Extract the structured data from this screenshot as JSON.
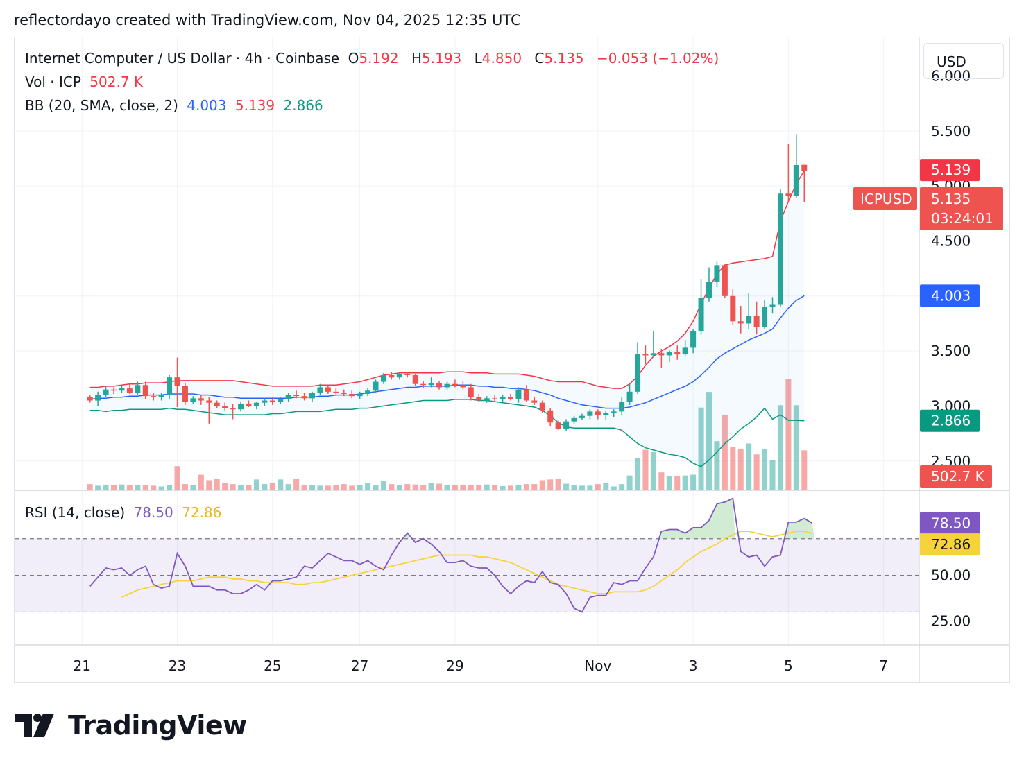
{
  "header": {
    "credit": "reflectordayo created with TradingView.com, Nov 04, 2025 12:35 UTC"
  },
  "legend": {
    "symbol": "Internet Computer / US Dollar · 4h · Coinbase",
    "open_label": "O",
    "open": "5.192",
    "high_label": "H",
    "high": "5.193",
    "low_label": "L",
    "low": "4.850",
    "close_label": "C",
    "close": "5.135",
    "change": "−0.053 (−1.02%)",
    "vol_label": "Vol · ICP",
    "vol_value": "502.7 K",
    "bb_label": "BB (20, SMA, close, 2)",
    "bb_basis": "4.003",
    "bb_upper": "5.139",
    "bb_lower": "2.866",
    "rsi_label": "RSI (14, close)",
    "rsi_value": "78.50",
    "rsi_ma": "72.86"
  },
  "currency_button": "USD",
  "brand": {
    "name": "TradingView"
  },
  "colors": {
    "up": "#26a69a",
    "down": "#ef5350",
    "bb_upper": "#f23645",
    "bb_basis": "#2962ff",
    "bb_lower": "#089981",
    "rsi": "#7e57c2",
    "rsi_ma": "#f7d33b",
    "grid": "#f0f3fa"
  },
  "price_labels": {
    "symbol_tag": "ICPUSD",
    "last_price": "5.135",
    "countdown": "03:24:01",
    "bb_upper": "5.139",
    "bb_basis": "4.003",
    "bb_lower": "2.866",
    "volume": "502.7 K",
    "rsi": "78.50",
    "rsi_ma": "72.86"
  },
  "chart_data": {
    "type": "candlestick",
    "timeframe": "4h",
    "y_ticks": [
      2.5,
      3.0,
      3.5,
      4.0,
      4.5,
      5.0,
      5.5,
      6.0
    ],
    "y_tick_labels": [
      "2.500",
      "3.000",
      "3.500",
      "4.000",
      "4.500",
      "5.000",
      "5.500",
      "6.000"
    ],
    "y_range": [
      2.24,
      6.35
    ],
    "x_tick_labels": [
      "21",
      "23",
      "25",
      "27",
      "29",
      "Nov",
      "3",
      "5",
      "7"
    ],
    "x_tick_index": [
      -1,
      11,
      23,
      34,
      46,
      64,
      76,
      88,
      100
    ],
    "index_range": [
      -9.5,
      104.4
    ],
    "candles": [
      [
        3.08,
        3.1,
        3.03,
        3.05
      ],
      [
        3.05,
        3.13,
        3.0,
        3.1
      ],
      [
        3.1,
        3.18,
        3.08,
        3.15
      ],
      [
        3.15,
        3.17,
        3.11,
        3.14
      ],
      [
        3.14,
        3.19,
        3.12,
        3.16
      ],
      [
        3.16,
        3.2,
        3.11,
        3.12
      ],
      [
        3.12,
        3.22,
        3.1,
        3.19
      ],
      [
        3.19,
        3.22,
        3.06,
        3.09
      ],
      [
        3.09,
        3.12,
        3.05,
        3.08
      ],
      [
        3.08,
        3.12,
        3.05,
        3.1
      ],
      [
        3.1,
        3.28,
        3.06,
        3.26
      ],
      [
        3.26,
        3.44,
        2.99,
        3.18
      ],
      [
        3.18,
        3.21,
        3.01,
        3.04
      ],
      [
        3.04,
        3.09,
        3.02,
        3.07
      ],
      [
        3.07,
        3.1,
        3.01,
        3.05
      ],
      [
        3.05,
        3.08,
        2.84,
        3.03
      ],
      [
        3.03,
        3.05,
        2.98,
        3.0
      ],
      [
        3.0,
        3.03,
        2.96,
        2.98
      ],
      [
        2.98,
        3.02,
        2.88,
        2.97
      ],
      [
        2.97,
        3.04,
        2.95,
        3.02
      ],
      [
        3.02,
        3.05,
        2.99,
        3.0
      ],
      [
        3.0,
        3.04,
        2.97,
        3.03
      ],
      [
        3.03,
        3.07,
        3.0,
        3.05
      ],
      [
        3.05,
        3.08,
        3.01,
        3.04
      ],
      [
        3.04,
        3.08,
        3.02,
        3.06
      ],
      [
        3.06,
        3.12,
        3.04,
        3.1
      ],
      [
        3.1,
        3.14,
        3.07,
        3.09
      ],
      [
        3.09,
        3.12,
        3.05,
        3.07
      ],
      [
        3.07,
        3.13,
        3.04,
        3.12
      ],
      [
        3.12,
        3.2,
        3.1,
        3.17
      ],
      [
        3.17,
        3.19,
        3.11,
        3.13
      ],
      [
        3.13,
        3.16,
        3.1,
        3.12
      ],
      [
        3.12,
        3.15,
        3.09,
        3.11
      ],
      [
        3.11,
        3.14,
        3.07,
        3.09
      ],
      [
        3.09,
        3.13,
        3.06,
        3.11
      ],
      [
        3.11,
        3.16,
        3.09,
        3.14
      ],
      [
        3.14,
        3.24,
        3.12,
        3.22
      ],
      [
        3.22,
        3.3,
        3.2,
        3.28
      ],
      [
        3.28,
        3.31,
        3.24,
        3.26
      ],
      [
        3.26,
        3.31,
        3.24,
        3.29
      ],
      [
        3.29,
        3.31,
        3.26,
        3.28
      ],
      [
        3.28,
        3.29,
        3.18,
        3.2
      ],
      [
        3.2,
        3.23,
        3.16,
        3.19
      ],
      [
        3.19,
        3.26,
        3.17,
        3.21
      ],
      [
        3.21,
        3.23,
        3.15,
        3.17
      ],
      [
        3.17,
        3.22,
        3.15,
        3.2
      ],
      [
        3.2,
        3.24,
        3.17,
        3.19
      ],
      [
        3.19,
        3.23,
        3.15,
        3.17
      ],
      [
        3.17,
        3.2,
        3.05,
        3.08
      ],
      [
        3.08,
        3.11,
        3.04,
        3.05
      ],
      [
        3.05,
        3.09,
        3.03,
        3.07
      ],
      [
        3.07,
        3.1,
        3.04,
        3.06
      ],
      [
        3.06,
        3.1,
        3.03,
        3.08
      ],
      [
        3.08,
        3.11,
        3.05,
        3.06
      ],
      [
        3.06,
        3.17,
        3.03,
        3.15
      ],
      [
        3.15,
        3.19,
        3.04,
        3.05
      ],
      [
        3.05,
        3.08,
        3.01,
        3.03
      ],
      [
        3.03,
        3.05,
        2.94,
        2.96
      ],
      [
        2.96,
        2.98,
        2.82,
        2.85
      ],
      [
        2.85,
        2.87,
        2.78,
        2.79
      ],
      [
        2.79,
        2.88,
        2.77,
        2.86
      ],
      [
        2.86,
        2.91,
        2.84,
        2.89
      ],
      [
        2.89,
        2.93,
        2.87,
        2.91
      ],
      [
        2.91,
        2.97,
        2.88,
        2.95
      ],
      [
        2.95,
        2.97,
        2.88,
        2.92
      ],
      [
        2.92,
        2.96,
        2.87,
        2.94
      ],
      [
        2.94,
        2.97,
        2.9,
        2.95
      ],
      [
        2.95,
        3.08,
        2.92,
        3.04
      ],
      [
        3.04,
        3.2,
        3.01,
        3.13
      ],
      [
        3.13,
        3.58,
        3.11,
        3.47
      ],
      [
        3.47,
        3.55,
        3.38,
        3.46
      ],
      [
        3.46,
        3.68,
        3.44,
        3.48
      ],
      [
        3.48,
        3.52,
        3.35,
        3.46
      ],
      [
        3.46,
        3.51,
        3.4,
        3.49
      ],
      [
        3.49,
        3.55,
        3.42,
        3.47
      ],
      [
        3.47,
        3.6,
        3.45,
        3.53
      ],
      [
        3.53,
        3.7,
        3.48,
        3.68
      ],
      [
        3.68,
        4.15,
        3.65,
        3.98
      ],
      [
        3.98,
        4.26,
        3.95,
        4.13
      ],
      [
        4.13,
        4.31,
        4.08,
        4.28
      ],
      [
        4.28,
        4.29,
        3.98,
        4.0
      ],
      [
        4.0,
        4.06,
        3.74,
        3.77
      ],
      [
        3.77,
        3.91,
        3.66,
        3.75
      ],
      [
        3.75,
        4.03,
        3.7,
        3.82
      ],
      [
        3.82,
        3.95,
        3.65,
        3.72
      ],
      [
        3.72,
        3.96,
        3.7,
        3.9
      ],
      [
        3.9,
        3.99,
        3.84,
        3.92
      ],
      [
        3.92,
        4.97,
        3.9,
        4.93
      ],
      [
        4.93,
        5.38,
        4.85,
        4.91
      ],
      [
        4.91,
        5.47,
        4.89,
        5.19
      ],
      [
        5.192,
        5.193,
        4.85,
        5.135
      ]
    ],
    "volume_series": [
      {
        "name": "Vol · ICP",
        "unit": "K",
        "max_displayed": 1420,
        "values": [
          70,
          50,
          55,
          60,
          65,
          60,
          60,
          55,
          50,
          40,
          60,
          300,
          70,
          60,
          190,
          120,
          140,
          80,
          70,
          55,
          60,
          130,
          70,
          80,
          130,
          70,
          140,
          60,
          60,
          50,
          50,
          60,
          70,
          50,
          55,
          80,
          60,
          110,
          70,
          60,
          70,
          65,
          60,
          80,
          75,
          60,
          60,
          60,
          60,
          55,
          65,
          55,
          45,
          50,
          60,
          70,
          70,
          120,
          130,
          140,
          75,
          60,
          50,
          50,
          70,
          80,
          40,
          70,
          180,
          400,
          510,
          480,
          220,
          170,
          175,
          180,
          190,
          1050,
          1250,
          620,
          950,
          550,
          520,
          590,
          450,
          520,
          380,
          1080,
          1420,
          1080,
          502.7
        ]
      }
    ],
    "bollinger": {
      "basis": [
        3.06,
        3.07,
        3.07,
        3.08,
        3.08,
        3.09,
        3.09,
        3.1,
        3.1,
        3.1,
        3.11,
        3.11,
        3.11,
        3.11,
        3.1,
        3.1,
        3.09,
        3.08,
        3.08,
        3.07,
        3.07,
        3.07,
        3.07,
        3.07,
        3.07,
        3.07,
        3.08,
        3.08,
        3.08,
        3.09,
        3.09,
        3.1,
        3.1,
        3.1,
        3.11,
        3.12,
        3.13,
        3.14,
        3.15,
        3.16,
        3.17,
        3.17,
        3.18,
        3.18,
        3.18,
        3.18,
        3.19,
        3.19,
        3.19,
        3.18,
        3.18,
        3.17,
        3.17,
        3.16,
        3.16,
        3.15,
        3.14,
        3.12,
        3.1,
        3.07,
        3.05,
        3.03,
        3.01,
        3.0,
        2.99,
        2.98,
        2.98,
        2.98,
        2.99,
        3.01,
        3.03,
        3.06,
        3.09,
        3.12,
        3.15,
        3.18,
        3.22,
        3.28,
        3.35,
        3.43,
        3.48,
        3.52,
        3.56,
        3.6,
        3.63,
        3.66,
        3.7,
        3.8,
        3.89,
        3.96,
        4.003
      ],
      "upper": [
        3.17,
        3.17,
        3.18,
        3.18,
        3.19,
        3.2,
        3.2,
        3.21,
        3.21,
        3.21,
        3.22,
        3.23,
        3.23,
        3.23,
        3.23,
        3.23,
        3.23,
        3.23,
        3.23,
        3.22,
        3.21,
        3.2,
        3.19,
        3.18,
        3.18,
        3.18,
        3.18,
        3.18,
        3.18,
        3.19,
        3.19,
        3.19,
        3.2,
        3.21,
        3.22,
        3.24,
        3.26,
        3.28,
        3.29,
        3.3,
        3.3,
        3.3,
        3.3,
        3.3,
        3.3,
        3.31,
        3.31,
        3.31,
        3.3,
        3.3,
        3.3,
        3.29,
        3.29,
        3.29,
        3.29,
        3.28,
        3.27,
        3.25,
        3.23,
        3.22,
        3.22,
        3.22,
        3.22,
        3.2,
        3.18,
        3.17,
        3.16,
        3.16,
        3.2,
        3.27,
        3.37,
        3.45,
        3.5,
        3.54,
        3.59,
        3.66,
        3.77,
        3.93,
        4.07,
        4.2,
        4.28,
        4.3,
        4.31,
        4.32,
        4.33,
        4.34,
        4.36,
        4.68,
        4.86,
        5.02,
        5.139
      ],
      "lower": [
        2.96,
        2.96,
        2.95,
        2.96,
        2.96,
        2.97,
        2.97,
        2.97,
        2.97,
        2.97,
        2.98,
        2.97,
        2.97,
        2.96,
        2.95,
        2.94,
        2.93,
        2.92,
        2.92,
        2.92,
        2.92,
        2.92,
        2.92,
        2.93,
        2.93,
        2.94,
        2.95,
        2.95,
        2.95,
        2.95,
        2.96,
        2.97,
        2.97,
        2.97,
        2.98,
        2.98,
        2.99,
        3.0,
        3.01,
        3.02,
        3.03,
        3.04,
        3.05,
        3.05,
        3.05,
        3.05,
        3.06,
        3.06,
        3.06,
        3.05,
        3.05,
        3.04,
        3.03,
        3.02,
        3.01,
        3.0,
        2.99,
        2.96,
        2.91,
        2.85,
        2.81,
        2.8,
        2.8,
        2.8,
        2.8,
        2.8,
        2.8,
        2.78,
        2.72,
        2.66,
        2.62,
        2.6,
        2.58,
        2.56,
        2.55,
        2.53,
        2.48,
        2.45,
        2.51,
        2.58,
        2.66,
        2.72,
        2.79,
        2.84,
        2.9,
        2.98,
        2.88,
        2.92,
        2.87,
        2.87,
        2.866
      ]
    },
    "rsi": {
      "y_ticks": [
        25,
        50,
        75
      ],
      "y_tick_labels": [
        "25.00",
        "50.00"
      ],
      "y_range": [
        12,
        96
      ],
      "band": [
        30,
        70
      ],
      "values": [
        44,
        49,
        54,
        53,
        54,
        50,
        53,
        55,
        45,
        43,
        44,
        62,
        55,
        44,
        44,
        44,
        42,
        42,
        40,
        40,
        42,
        45,
        42,
        47,
        47,
        48,
        49,
        55,
        54,
        58,
        62,
        60,
        58,
        58,
        56,
        58,
        55,
        53,
        61,
        68,
        73,
        68,
        70,
        67,
        63,
        57,
        57,
        58,
        55,
        54,
        54,
        50,
        44,
        40,
        44,
        47,
        46,
        52,
        46,
        45,
        40,
        32,
        30,
        38,
        39,
        39,
        46,
        45,
        47,
        47,
        54,
        60,
        74,
        75,
        75,
        73,
        76,
        76,
        80,
        89,
        90,
        92,
        63,
        60,
        61,
        55,
        60,
        61,
        79,
        79,
        81,
        78.5
      ],
      "ma": [
        38,
        40,
        42,
        43,
        44,
        45,
        46,
        47,
        47,
        47,
        48,
        49,
        49,
        49,
        48,
        48,
        47,
        47,
        46,
        46,
        46,
        46,
        45,
        45,
        46,
        46,
        47,
        48,
        49,
        50,
        51,
        52,
        53,
        54,
        55,
        56,
        57,
        58,
        59,
        60,
        61,
        61,
        61,
        61,
        61,
        60,
        60,
        59,
        58,
        57,
        55,
        53,
        51,
        49,
        47,
        45,
        44,
        43,
        42,
        41,
        40,
        40,
        41,
        41,
        41,
        41,
        42,
        44,
        47,
        50,
        53,
        57,
        60,
        63,
        65,
        67,
        70,
        72,
        74,
        74,
        73,
        72,
        71,
        72,
        73,
        74,
        74,
        72.86
      ]
    }
  }
}
